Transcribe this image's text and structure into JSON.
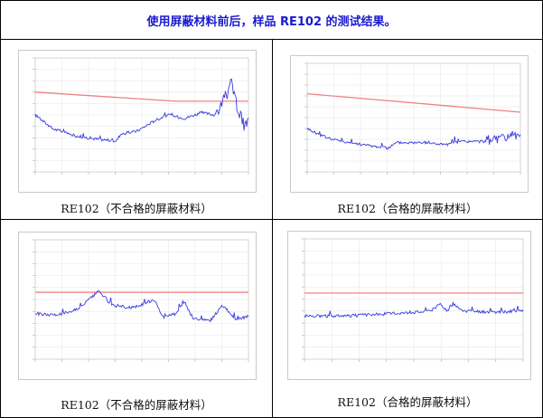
{
  "header": {
    "title": "使用屏蔽材料前后，样品 RE102 的测试结果。"
  },
  "captions": [
    "RE102（不合格的屏蔽材料）",
    "RE102（合格的屏蔽材料）",
    "RE102（不合格的屏蔽材料）",
    "RE102（合格的屏蔽材料）"
  ],
  "colors": {
    "title": "#1a1ad0",
    "limit_line": "#f08080",
    "trace": "#3b3bdc",
    "grid": "#e4e4e4"
  },
  "chart_data": [
    {
      "type": "line",
      "title": "",
      "xlabel": "",
      "ylabel": "",
      "x_scale": "log",
      "series": [
        {
          "role": "limit",
          "values_desc": "",
          "points": [
            [
              0,
              0.7
            ],
            [
              0.66,
              0.62
            ],
            [
              1,
              0.62
            ]
          ]
        },
        {
          "role": "measurement",
          "points": [
            [
              0,
              0.5
            ],
            [
              0.08,
              0.38
            ],
            [
              0.18,
              0.32
            ],
            [
              0.28,
              0.29
            ],
            [
              0.38,
              0.27
            ],
            [
              0.4,
              0.33
            ],
            [
              0.48,
              0.36
            ],
            [
              0.56,
              0.45
            ],
            [
              0.62,
              0.5
            ],
            [
              0.7,
              0.47
            ],
            [
              0.78,
              0.52
            ],
            [
              0.84,
              0.5
            ],
            [
              0.88,
              0.6
            ],
            [
              0.92,
              0.78
            ],
            [
              0.95,
              0.55
            ],
            [
              0.98,
              0.4
            ],
            [
              1,
              0.45
            ]
          ]
        }
      ]
    },
    {
      "type": "line",
      "title": "",
      "xlabel": "",
      "ylabel": "",
      "x_scale": "log",
      "series": [
        {
          "role": "limit",
          "points": [
            [
              0,
              0.72
            ],
            [
              1,
              0.55
            ]
          ]
        },
        {
          "role": "measurement",
          "points": [
            [
              0,
              0.4
            ],
            [
              0.06,
              0.34
            ],
            [
              0.12,
              0.3
            ],
            [
              0.2,
              0.27
            ],
            [
              0.3,
              0.24
            ],
            [
              0.38,
              0.22
            ],
            [
              0.42,
              0.27
            ],
            [
              0.55,
              0.27
            ],
            [
              0.66,
              0.25
            ],
            [
              0.72,
              0.28
            ],
            [
              0.82,
              0.28
            ],
            [
              0.9,
              0.3
            ],
            [
              0.96,
              0.32
            ],
            [
              1,
              0.34
            ]
          ]
        }
      ]
    },
    {
      "type": "line",
      "title": "",
      "xlabel": "",
      "ylabel": "",
      "x_scale": "log",
      "series": [
        {
          "role": "limit",
          "points": [
            [
              0,
              0.56
            ],
            [
              1,
              0.56
            ]
          ]
        },
        {
          "role": "measurement",
          "points": [
            [
              0,
              0.38
            ],
            [
              0.1,
              0.37
            ],
            [
              0.2,
              0.42
            ],
            [
              0.3,
              0.57
            ],
            [
              0.36,
              0.45
            ],
            [
              0.46,
              0.43
            ],
            [
              0.56,
              0.5
            ],
            [
              0.6,
              0.35
            ],
            [
              0.66,
              0.38
            ],
            [
              0.7,
              0.48
            ],
            [
              0.74,
              0.34
            ],
            [
              0.82,
              0.32
            ],
            [
              0.88,
              0.45
            ],
            [
              0.94,
              0.33
            ],
            [
              1,
              0.36
            ]
          ]
        }
      ]
    },
    {
      "type": "line",
      "title": "",
      "xlabel": "",
      "ylabel": "",
      "x_scale": "log",
      "series": [
        {
          "role": "limit",
          "points": [
            [
              0,
              0.55
            ],
            [
              1,
              0.55
            ]
          ]
        },
        {
          "role": "measurement",
          "points": [
            [
              0,
              0.36
            ],
            [
              0.2,
              0.36
            ],
            [
              0.4,
              0.38
            ],
            [
              0.58,
              0.4
            ],
            [
              0.62,
              0.46
            ],
            [
              0.65,
              0.4
            ],
            [
              0.68,
              0.46
            ],
            [
              0.72,
              0.4
            ],
            [
              0.85,
              0.39
            ],
            [
              1,
              0.4
            ]
          ]
        }
      ]
    }
  ]
}
